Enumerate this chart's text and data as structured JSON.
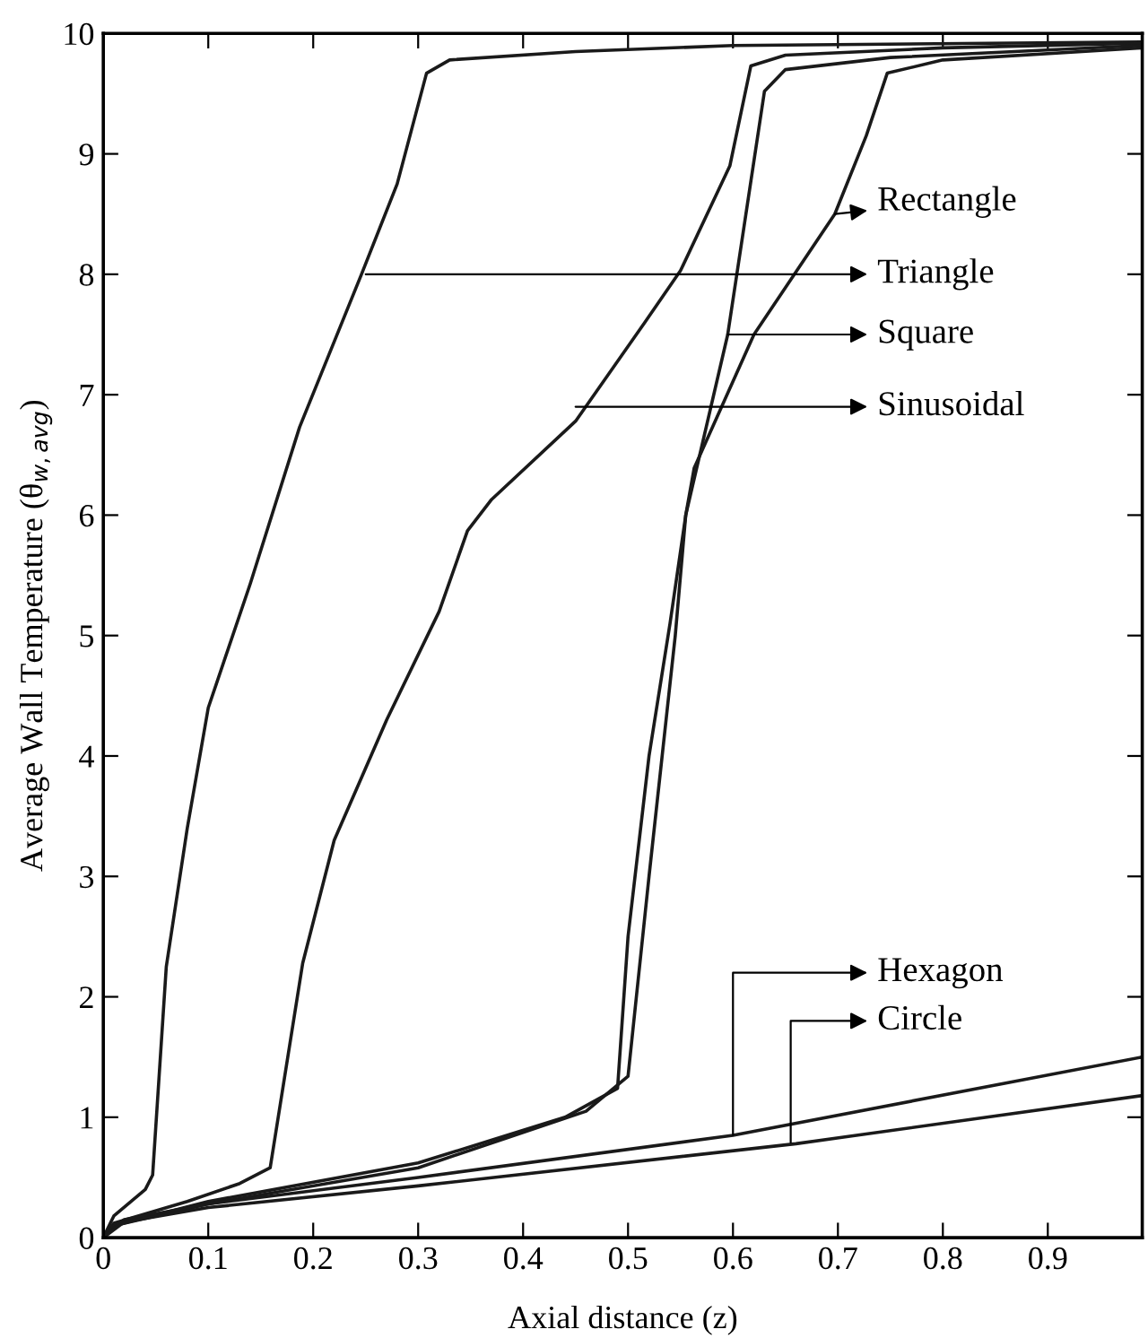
{
  "chart_data": {
    "type": "line",
    "xlabel": "Axial distance (z)",
    "ylabel": "Average Wall Temperature (θ$_{w,avg}$)",
    "xlim": [
      0,
      0.99
    ],
    "ylim": [
      0,
      10
    ],
    "xticks": [
      0,
      0.1,
      0.2,
      0.3,
      0.4,
      0.5,
      0.6,
      0.7,
      0.8,
      0.9
    ],
    "yticks": [
      0,
      1,
      2,
      3,
      4,
      5,
      6,
      7,
      8,
      9,
      10
    ],
    "grid": false,
    "legend": false,
    "marker": "none",
    "line_style": "solid",
    "series": [
      {
        "color": "#1a1a1a",
        "x": [
          0,
          0.01,
          0.04,
          0.047,
          0.06,
          0.08,
          0.1,
          0.14,
          0.187,
          0.246,
          0.28,
          0.308,
          0.33,
          0.45,
          0.6,
          0.99
        ],
        "values": [
          0,
          0.18,
          0.4,
          0.52,
          2.25,
          3.4,
          4.4,
          5.43,
          6.73,
          8.0,
          8.75,
          9.67,
          9.78,
          9.85,
          9.9,
          9.93
        ]
      },
      {
        "color": "#1a1a1a",
        "x": [
          0,
          0.01,
          0.08,
          0.13,
          0.159,
          0.19,
          0.22,
          0.27,
          0.32,
          0.347,
          0.37,
          0.45,
          0.516,
          0.55,
          0.597,
          0.617,
          0.65,
          0.8,
          0.99
        ],
        "values": [
          0,
          0.12,
          0.3,
          0.45,
          0.58,
          2.28,
          3.3,
          4.3,
          5.2,
          5.87,
          6.13,
          6.78,
          7.6,
          8.03,
          8.9,
          9.73,
          9.82,
          9.88,
          9.92
        ]
      },
      {
        "color": "#1a1a1a",
        "x": [
          0,
          0.01,
          0.1,
          0.3,
          0.44,
          0.49,
          0.5,
          0.52,
          0.54,
          0.555,
          0.595,
          0.63,
          0.65,
          0.75,
          0.99
        ],
        "values": [
          0,
          0.1,
          0.3,
          0.62,
          1.0,
          1.24,
          2.5,
          4.0,
          5.1,
          6.0,
          7.5,
          9.52,
          9.7,
          9.8,
          9.9
        ]
      },
      {
        "color": "#1a1a1a",
        "x": [
          0,
          0.01,
          0.1,
          0.3,
          0.46,
          0.5,
          0.52,
          0.545,
          0.555,
          0.563,
          0.62,
          0.697,
          0.727,
          0.747,
          0.8,
          0.99
        ],
        "values": [
          0,
          0.1,
          0.28,
          0.58,
          1.05,
          1.34,
          3.0,
          5.0,
          6.0,
          6.39,
          7.5,
          8.5,
          9.15,
          9.67,
          9.78,
          9.88
        ]
      },
      {
        "color": "#1a1a1a",
        "x": [
          0,
          0.02,
          0.1,
          0.3,
          0.6,
          0.99
        ],
        "values": [
          0,
          0.15,
          0.28,
          0.5,
          0.85,
          1.5
        ]
      },
      {
        "color": "#1a1a1a",
        "x": [
          0,
          0.02,
          0.1,
          0.3,
          0.66,
          0.99
        ],
        "values": [
          0,
          0.13,
          0.25,
          0.43,
          0.78,
          1.18
        ]
      }
    ],
    "annotations": [
      {
        "text": "Rectangle",
        "x": 0.697,
        "y": 8.5
      },
      {
        "text": "Triangle",
        "x": 0.25,
        "y": 8.0
      },
      {
        "text": "Square",
        "x": 0.595,
        "y": 7.5
      },
      {
        "text": "Sinusoidal",
        "x": 0.45,
        "y": 6.9
      },
      {
        "text": "Hexagon",
        "x": 0.6,
        "y": 0.85
      },
      {
        "text": "Circle",
        "x": 0.655,
        "y": 0.79
      }
    ]
  }
}
